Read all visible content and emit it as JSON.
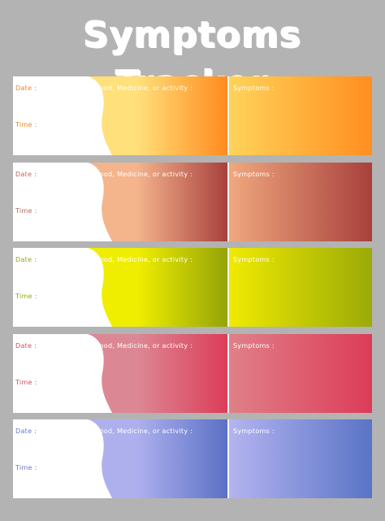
{
  "title": "Symptoms Tracker",
  "labels": {
    "date": "Date :",
    "time": "Time :",
    "food": "Food, Medicine, or activity :",
    "symptoms": "Symptoms :"
  },
  "cards": [
    {
      "label_color": "#e8872a",
      "wave_from": "#ffe07a",
      "wave_to": "#ff8a1e",
      "right_from": "#ffd35a",
      "right_to": "#ff8e20"
    },
    {
      "label_color": "#b86a5c",
      "wave_from": "#f4b48c",
      "wave_to": "#a83f3c",
      "right_from": "#f0a87e",
      "right_to": "#a8403c"
    },
    {
      "label_color": "#9aa610",
      "wave_from": "#f0ee00",
      "wave_to": "#94a308",
      "right_from": "#f0ea00",
      "right_to": "#9aaa08"
    },
    {
      "label_color": "#d0505e",
      "wave_from": "#dc8894",
      "wave_to": "#dc3c58",
      "right_from": "#e08088",
      "right_to": "#dc3c58"
    },
    {
      "label_color": "#6a78c8",
      "wave_from": "#aeb0ee",
      "wave_to": "#5a70c4",
      "right_from": "#b4b4f0",
      "right_to": "#5a74c6"
    }
  ]
}
